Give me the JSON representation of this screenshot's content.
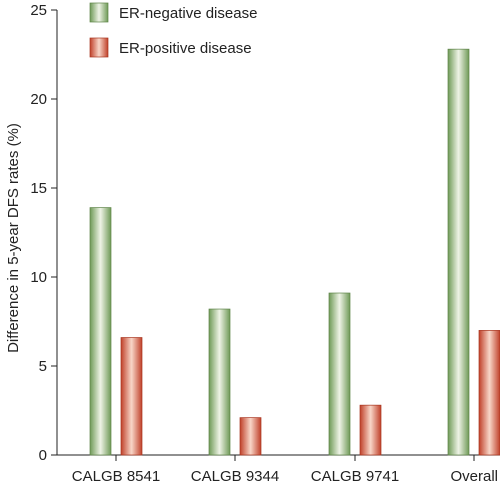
{
  "chart_data": {
    "type": "bar",
    "categories": [
      "CALGB 8541",
      "CALGB 9344",
      "CALGB 9741",
      "Overall"
    ],
    "series": [
      {
        "name": "ER-negative disease",
        "values": [
          13.9,
          8.2,
          9.1,
          22.8
        ],
        "color": "#8fae78"
      },
      {
        "name": "ER-positive disease",
        "values": [
          6.6,
          2.1,
          2.8,
          7.0
        ],
        "color": "#d0553a"
      }
    ],
    "ylabel": "Difference in 5-year DFS rates (%)",
    "xlabel": "",
    "title": "",
    "ylim": [
      0,
      25
    ],
    "yticks": [
      0,
      5,
      10,
      15,
      20,
      25
    ],
    "grid": false,
    "legend_position": "top-left"
  }
}
